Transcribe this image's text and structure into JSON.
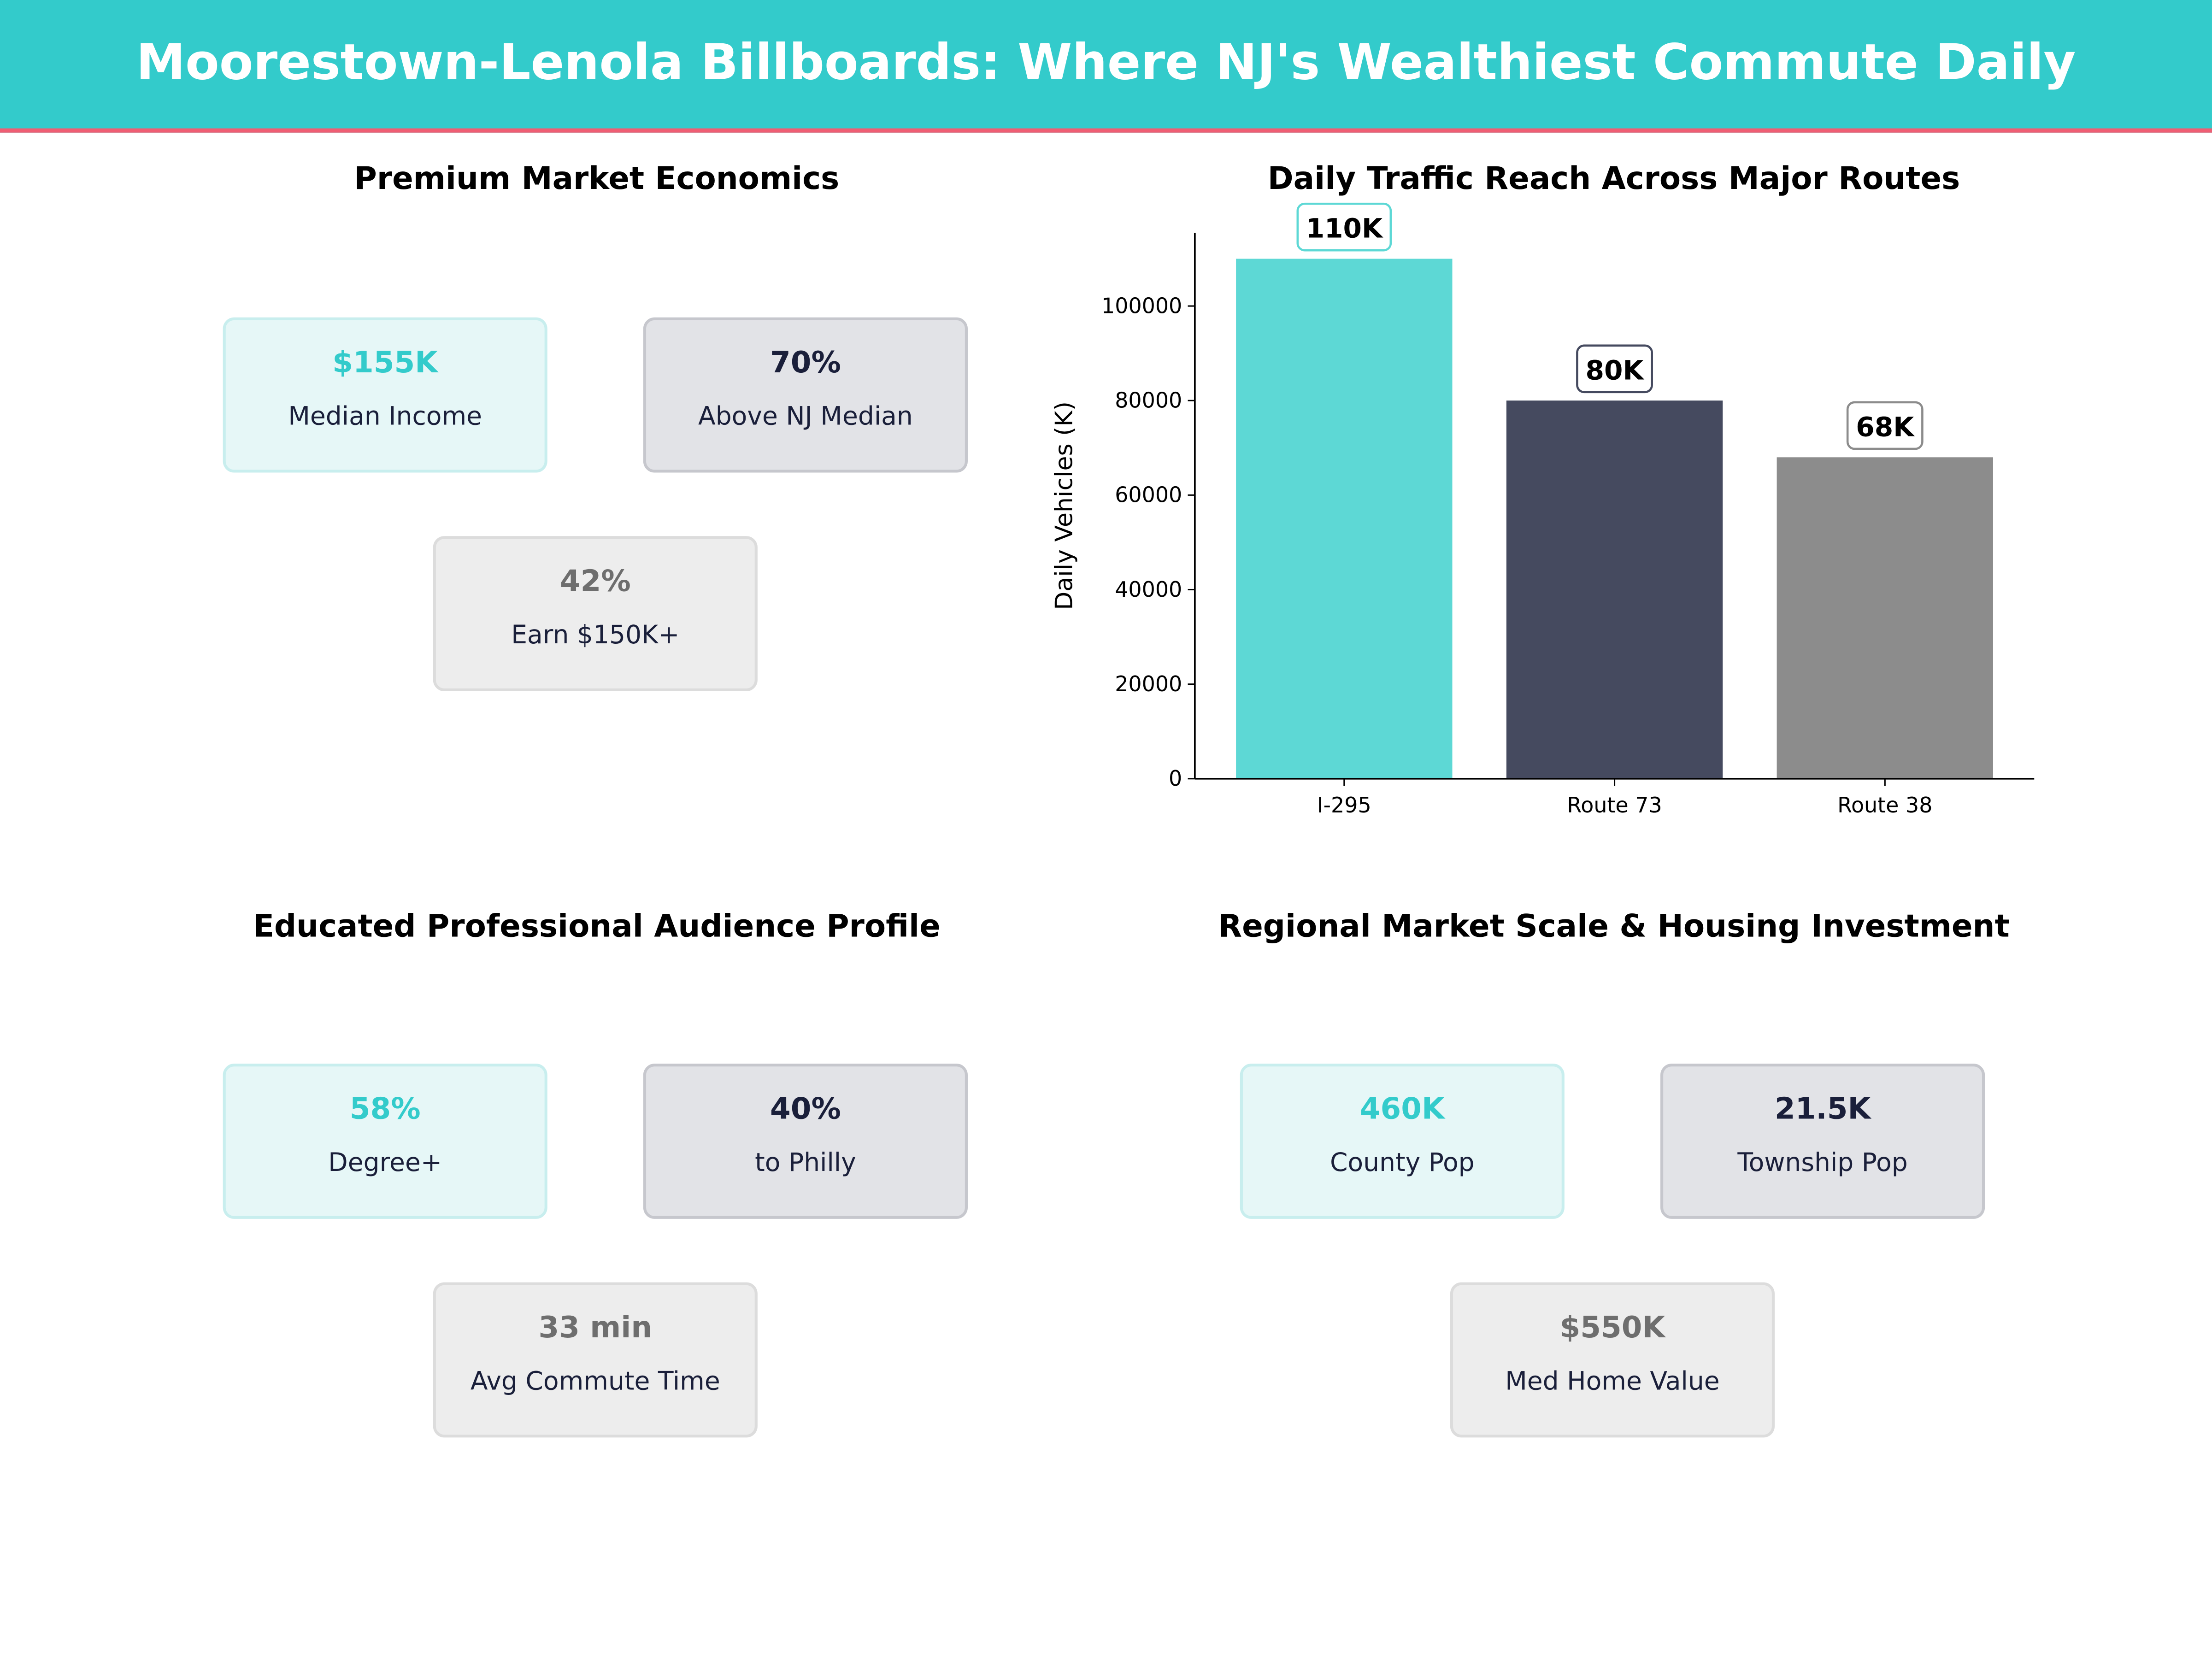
{
  "header": {
    "title": "Moorestown-Lenola Billboards: Where NJ's Wealthiest Commute Daily",
    "bg": "#33cbcb",
    "accent": "#ef5e73"
  },
  "panels": [
    {
      "title": "Premium Market Economics",
      "cards": [
        {
          "value": "$155K",
          "label": "Median Income"
        },
        {
          "value": "70%",
          "label": "Above NJ Median"
        },
        {
          "value": "42%",
          "label": "Earn $150K+"
        }
      ]
    },
    {
      "title": "Educated Professional Audience Profile",
      "cards": [
        {
          "value": "58%",
          "label": "Degree+"
        },
        {
          "value": "40%",
          "label": "to Philly"
        },
        {
          "value": "33 min",
          "label": "Avg Commute Time"
        }
      ]
    },
    {
      "title": "Regional Market Scale & Housing Investment",
      "cards": [
        {
          "value": "460K",
          "label": "County Pop"
        },
        {
          "value": "21.5K",
          "label": "Township Pop"
        },
        {
          "value": "$550K",
          "label": "Med Home Value"
        }
      ]
    }
  ],
  "chart_data": {
    "type": "bar",
    "title": "Daily Traffic Reach Across Major Routes",
    "xlabel": "",
    "ylabel": "Daily Vehicles (K)",
    "categories": [
      "I-295",
      "Route 73",
      "Route 38"
    ],
    "values": [
      110000,
      80000,
      68000
    ],
    "data_labels": [
      "110K",
      "80K",
      "68K"
    ],
    "colors": [
      "#5dd8d5",
      "#454a5f",
      "#8c8c8c"
    ],
    "label_border_colors": [
      "#5dd8d5",
      "#454a5f",
      "#8c8c8c"
    ],
    "ylim": [
      0,
      115500
    ],
    "yticks": [
      0,
      20000,
      40000,
      60000,
      80000,
      100000
    ],
    "grid": false
  }
}
